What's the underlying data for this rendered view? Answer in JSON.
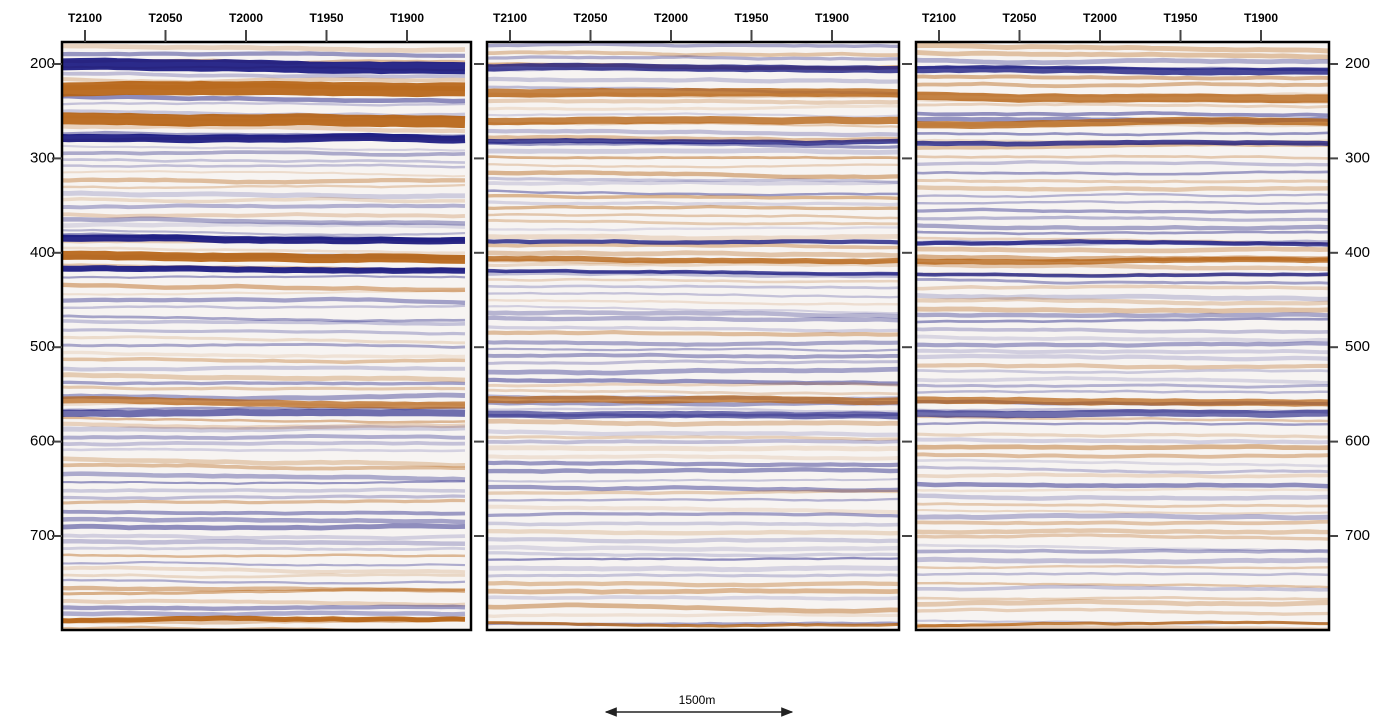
{
  "panels": [
    {
      "top_labels": [
        "T2100",
        "T2050",
        "T2000",
        "T1950",
        "T1900"
      ]
    },
    {
      "top_labels": [
        "T2100",
        "T2050",
        "T2000",
        "T1950",
        "T1900"
      ]
    },
    {
      "top_labels": [
        "T2100",
        "T2050",
        "T2000",
        "T1950",
        "T1900"
      ]
    }
  ],
  "depth_labels": [
    "200",
    "300",
    "400",
    "500",
    "600",
    "700"
  ],
  "scale_bar": "1500m"
}
